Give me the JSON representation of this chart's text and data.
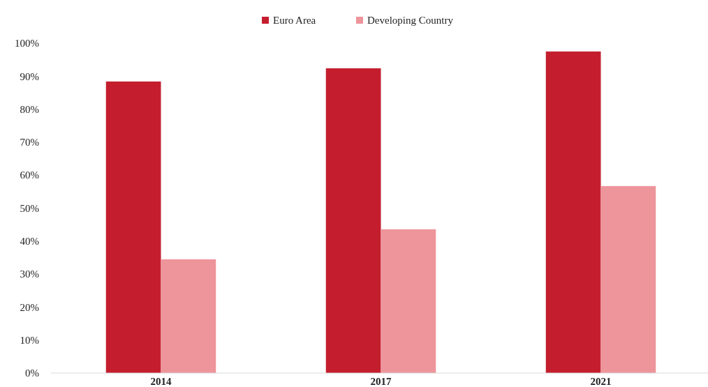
{
  "chart_data": {
    "type": "bar",
    "categories": [
      "2014",
      "2017",
      "2021"
    ],
    "series": [
      {
        "name": "Euro Area",
        "color": "#c41e2e",
        "values": [
          88.4,
          92.4,
          97.5
        ]
      },
      {
        "name": "Developing Country",
        "color": "#ee959b",
        "values": [
          34.5,
          43.6,
          56.7
        ]
      }
    ],
    "ylim": [
      0,
      100
    ],
    "yticks": [
      {
        "value": 0,
        "label": "0%"
      },
      {
        "value": 10,
        "label": "10%"
      },
      {
        "value": 20,
        "label": "20%"
      },
      {
        "value": 30,
        "label": "30%"
      },
      {
        "value": 40,
        "label": "40%"
      },
      {
        "value": 50,
        "label": "50%"
      },
      {
        "value": 60,
        "label": "60%"
      },
      {
        "value": 70,
        "label": "70%"
      },
      {
        "value": 80,
        "label": "80%"
      },
      {
        "value": 90,
        "label": "90%"
      },
      {
        "value": 100,
        "label": "100%"
      }
    ],
    "grid": false,
    "legend": "top"
  }
}
